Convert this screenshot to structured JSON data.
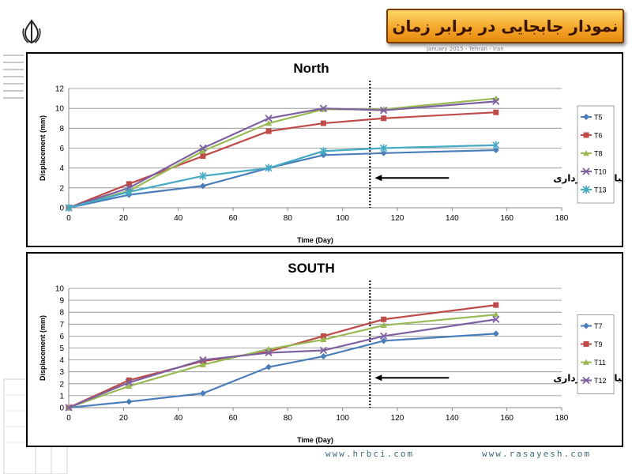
{
  "header": {
    "title": "نمودار جابجایی در برابر زمان",
    "reference_text": "January 2015 - Tehran - Iran"
  },
  "footer": {
    "left_url": "www.hrbci.com",
    "right_url": "www.rasayesh.com"
  },
  "colors": {
    "T5": "#4a7ebb",
    "T6": "#be4b48",
    "T8": "#98b954",
    "T10": "#7d60a0",
    "T13": "#46aac5",
    "T7": "#4a7ebb",
    "T9": "#be4b48",
    "T11": "#98b954",
    "T12": "#7d60a0"
  },
  "chart_data": [
    {
      "type": "line",
      "title": "North",
      "xlabel": "Time (Day)",
      "ylabel": "Displacement (mm)",
      "xlim": [
        0,
        180
      ],
      "ylim": [
        0,
        12
      ],
      "xticks": [
        0,
        20,
        40,
        60,
        80,
        100,
        120,
        140,
        160,
        180
      ],
      "yticks": [
        0,
        2,
        4,
        6,
        8,
        10,
        12
      ],
      "grid": "horizontal",
      "legend": "right",
      "marker_line_x": 110,
      "annotation": "پایان عملیات گودبرداری",
      "series": [
        {
          "name": "T5",
          "marker": "diamond",
          "x": [
            0,
            22,
            49,
            73,
            93,
            115,
            156
          ],
          "y": [
            0,
            1.3,
            2.2,
            4.0,
            5.3,
            5.5,
            5.8
          ]
        },
        {
          "name": "T6",
          "marker": "square",
          "x": [
            0,
            22,
            49,
            73,
            93,
            115,
            156
          ],
          "y": [
            0,
            2.4,
            5.2,
            7.7,
            8.5,
            9.0,
            9.6
          ]
        },
        {
          "name": "T8",
          "marker": "triangle",
          "x": [
            0,
            22,
            49,
            73,
            93,
            115,
            156
          ],
          "y": [
            0,
            1.7,
            5.7,
            8.5,
            9.9,
            9.9,
            11.0
          ]
        },
        {
          "name": "T10",
          "marker": "x",
          "x": [
            0,
            22,
            49,
            73,
            93,
            115,
            156
          ],
          "y": [
            0,
            2.0,
            6.0,
            9.0,
            10.0,
            9.8,
            10.7
          ]
        },
        {
          "name": "T13",
          "marker": "star",
          "x": [
            0,
            22,
            49,
            73,
            93,
            115,
            156
          ],
          "y": [
            0,
            1.6,
            3.2,
            4.0,
            5.7,
            6.0,
            6.3
          ]
        }
      ]
    },
    {
      "type": "line",
      "title": "SOUTH",
      "xlabel": "Time (Day)",
      "ylabel": "Displacement (mm)",
      "xlim": [
        0,
        180
      ],
      "ylim": [
        0,
        10
      ],
      "xticks": [
        0,
        20,
        40,
        60,
        80,
        100,
        120,
        140,
        160,
        180
      ],
      "yticks": [
        0,
        1,
        2,
        3,
        4,
        5,
        6,
        7,
        8,
        9,
        10
      ],
      "grid": "horizontal",
      "legend": "right",
      "marker_line_x": 110,
      "annotation": "پایان عملیات گودبرداری",
      "series": [
        {
          "name": "T7",
          "marker": "diamond",
          "x": [
            0,
            22,
            49,
            73,
            93,
            115,
            156
          ],
          "y": [
            0,
            0.5,
            1.2,
            3.4,
            4.3,
            5.6,
            6.2
          ]
        },
        {
          "name": "T9",
          "marker": "square",
          "x": [
            0,
            22,
            49,
            73,
            93,
            115,
            156
          ],
          "y": [
            0,
            2.3,
            3.9,
            4.7,
            6.0,
            7.4,
            8.6
          ]
        },
        {
          "name": "T11",
          "marker": "triangle",
          "x": [
            0,
            22,
            49,
            73,
            93,
            115,
            156
          ],
          "y": [
            0,
            1.8,
            3.6,
            4.9,
            5.7,
            6.9,
            7.8
          ]
        },
        {
          "name": "T12",
          "marker": "x",
          "x": [
            0,
            22,
            49,
            73,
            93,
            115,
            156
          ],
          "y": [
            0,
            2.1,
            4.0,
            4.6,
            4.8,
            6.0,
            7.4
          ]
        }
      ]
    }
  ]
}
